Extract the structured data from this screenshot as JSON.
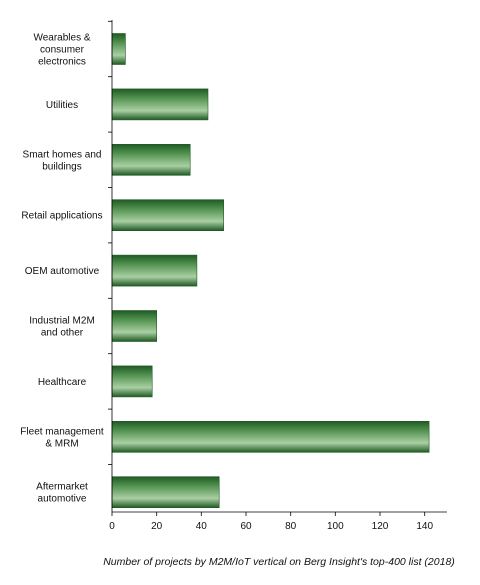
{
  "chart_data": {
    "type": "bar",
    "orientation": "horizontal",
    "categories": [
      "Wearables & consumer electronics",
      "Utilities",
      "Smart homes and buildings",
      "Retail applications",
      "OEM automotive",
      "Industrial M2M and other",
      "Healthcare",
      "Fleet management & MRM",
      "Aftermarket automotive"
    ],
    "category_lines": [
      [
        "Wearables &",
        "consumer",
        "electronics"
      ],
      [
        "Utilities"
      ],
      [
        "Smart homes and",
        "buildings"
      ],
      [
        "Retail applications"
      ],
      [
        "OEM automotive"
      ],
      [
        "Industrial M2M",
        "and other"
      ],
      [
        "Healthcare"
      ],
      [
        "Fleet management",
        "& MRM"
      ],
      [
        "Aftermarket",
        "automotive"
      ]
    ],
    "values": [
      6,
      43,
      35,
      50,
      38,
      20,
      18,
      142,
      48
    ],
    "xlim": [
      0,
      150
    ],
    "xticks": [
      0,
      20,
      40,
      60,
      80,
      100,
      120,
      140
    ],
    "xlabel": "Number of projects by M2M/IoT vertical on Berg Insight's top-400 list (2018)",
    "ylabel": "",
    "title": "",
    "grid": false,
    "legend": "none",
    "colors": {
      "bar_dark": "#1f5a24",
      "bar_mid": "#4f8f4d",
      "bar_light": "#a9cfa3",
      "axis": "#000000"
    }
  }
}
